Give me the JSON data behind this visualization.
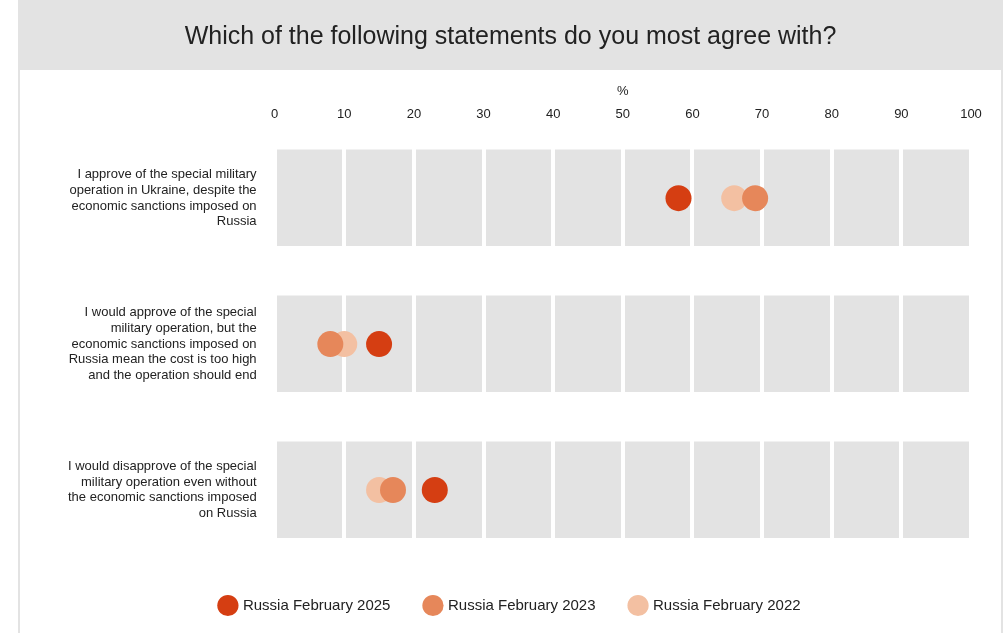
{
  "chart_data": {
    "type": "scatter",
    "title": "Which of the following statements do you most agree with?",
    "xlabel": "%",
    "categories": [
      "I approve of the special military operation in Ukraine, despite the economic sanctions imposed on Russia",
      "I would approve of the special military operation, but the economic sanctions imposed on Russia mean the cost is too high and the operation should end",
      "I would disapprove of the special military operation even without the economic sanctions imposed on Russia"
    ],
    "orientation": "horizontal",
    "xlim": [
      0,
      100
    ],
    "xticks": [
      0,
      10,
      20,
      30,
      40,
      50,
      60,
      70,
      80,
      90,
      100
    ],
    "grid": true,
    "bands": [
      {
        "axis": "x",
        "from": 0,
        "to": 100,
        "color": "#e3e3e3"
      }
    ],
    "legend": "bottom",
    "marker": "circle",
    "series": [
      {
        "name": "Russia February 2025",
        "color": "#d53e12",
        "values": [
          58,
          15,
          23
        ]
      },
      {
        "name": "Russia February 2023",
        "color": "#e6875a",
        "values": [
          69,
          8,
          17
        ]
      },
      {
        "name": "Russia February 2022",
        "color": "#f3c0a2",
        "values": [
          66,
          10,
          15
        ]
      }
    ]
  }
}
